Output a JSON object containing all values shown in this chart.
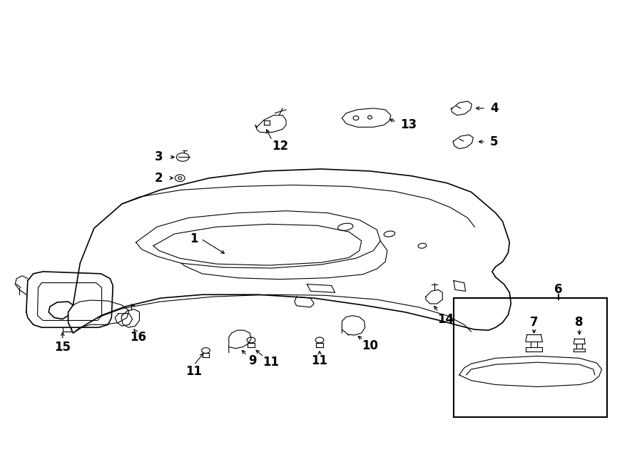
{
  "background_color": "#ffffff",
  "line_color": "#000000",
  "fig_width": 9.0,
  "fig_height": 6.62,
  "dpi": 100
}
